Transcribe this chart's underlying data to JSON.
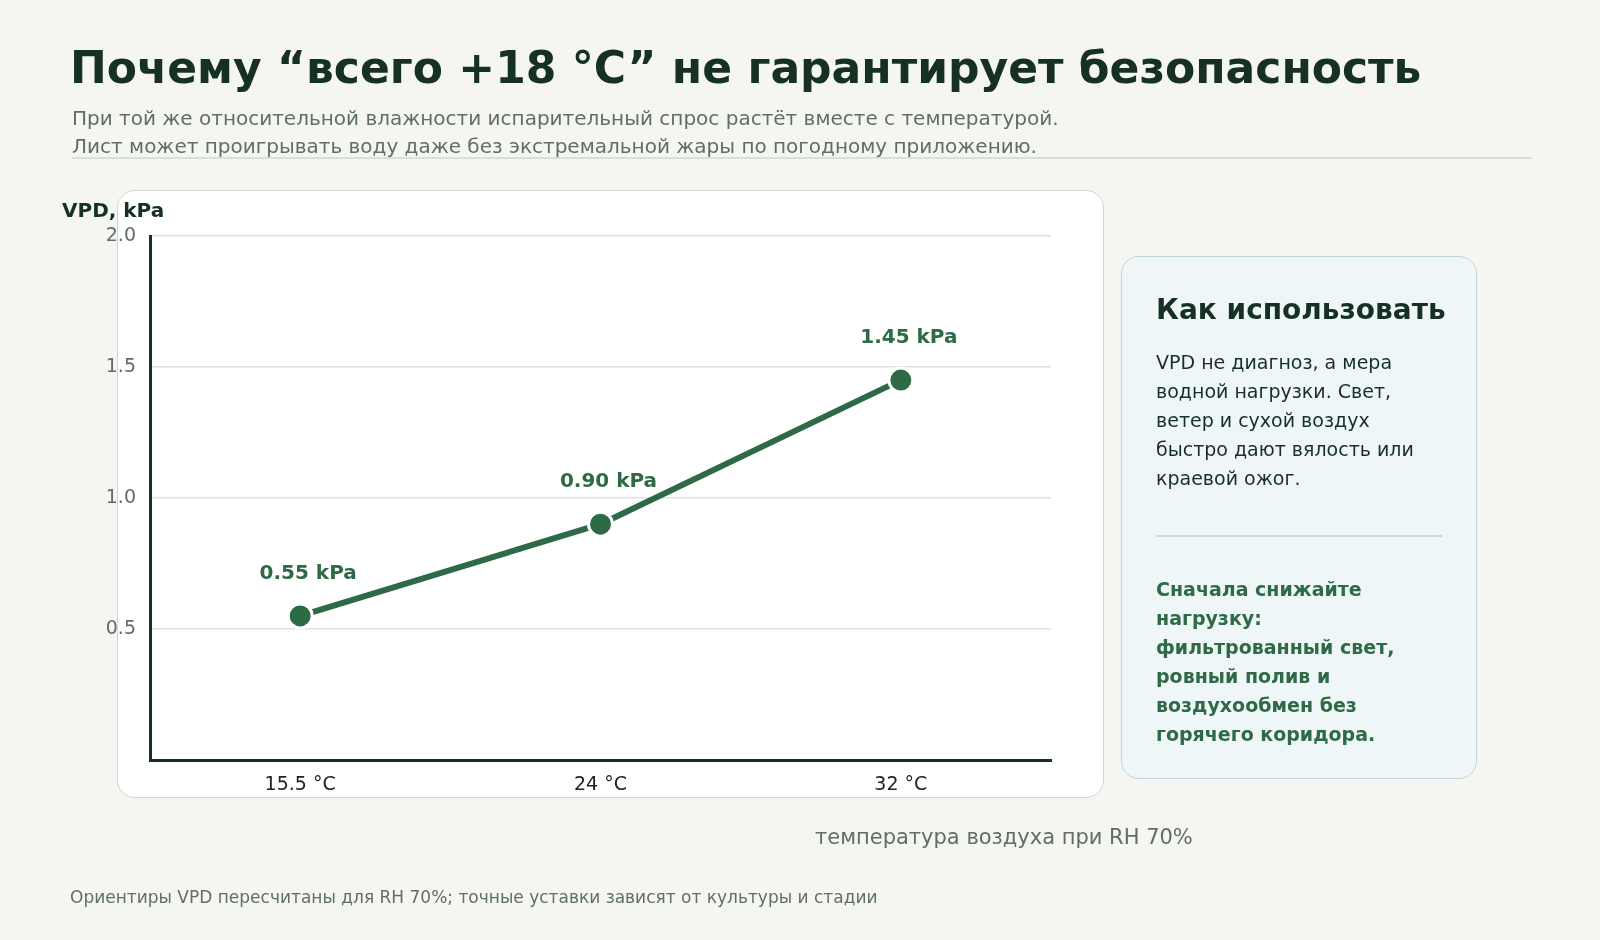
{
  "chart_data": [
    {
      "type": "line",
      "title": "Почему “всего +18 °C” не гарантирует безопасность",
      "subtitle": "При той же относительной влажности испарительный спрос растёт вместе с температурой.\nЛист может проигрывать воду даже без экстремальной жары по погодному приложению.",
      "xlabel": "температура воздуха при RH 70%",
      "ylabel": "VPD, kPa",
      "categories": [
        "15.5 °C",
        "24 °C",
        "32 °C"
      ],
      "values": [
        0.55,
        0.9,
        1.45
      ],
      "value_labels": [
        "0.55 kPa",
        "0.90 kPa",
        "1.45 kPa"
      ],
      "color": "#2d6a45",
      "marker": "circle",
      "ylim": [
        0,
        2
      ],
      "yticks": [
        0.5,
        {
          "value": 1,
          "label": "1.0"
        },
        1.5,
        {
          "value": 2,
          "label": "2.0"
        }
      ],
      "grid": "y",
      "annotations": [
        "Ориентиры VPD пересчитаны для RH 70%; точные уставки зависят от культуры и стадии"
      ]
    },
    {
      "type": "other",
      "title": "Как использовать",
      "annotations": [
        "VPD не диагноз, а мера водной нагрузки. Свет, ветер и сухой воздух быстро дают вялость или краевой ожог.",
        "Сначала снижайте нагрузку: фильтрованный свет, ровный полив и воздухообмен без горячего коридора."
      ]
    }
  ]
}
